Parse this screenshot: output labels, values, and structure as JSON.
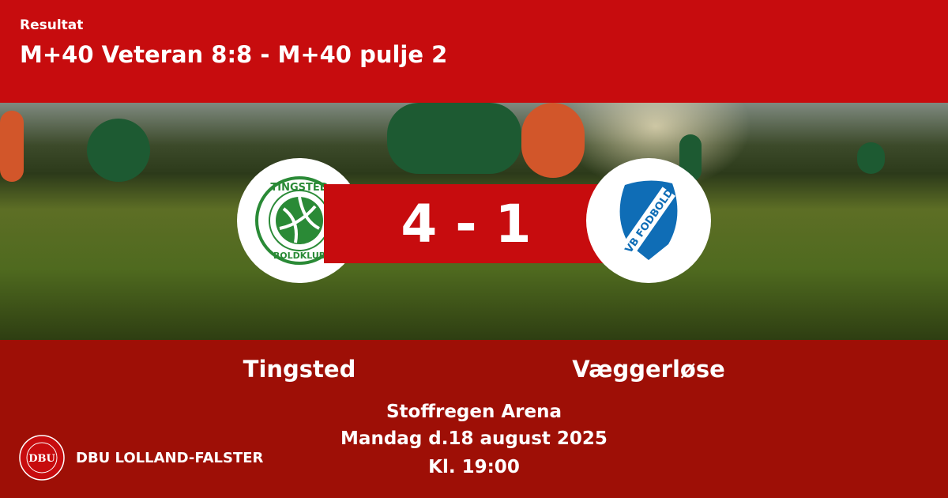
{
  "header": {
    "label": "Resultat",
    "title": "M+40 Veteran 8:8 - M+40 pulje 2"
  },
  "match": {
    "score": "4 - 1",
    "home_team": "Tingsted",
    "away_team": "Væggerløse",
    "venue": "Stoffregen Arena",
    "date": "Mandag d.18 august 2025",
    "time": "Kl. 19:00"
  },
  "logos": {
    "home": "TINGSTED BOLDKLUB",
    "away": "VB FODBOLD"
  },
  "footer": {
    "org": "DBU LOLLAND-FALSTER",
    "badge": "DBU"
  },
  "colors": {
    "header_red": "#c70c0e",
    "bottom_red": "#9e0f06",
    "home_green": "#2a8a36",
    "away_blue": "#0f6db6"
  }
}
